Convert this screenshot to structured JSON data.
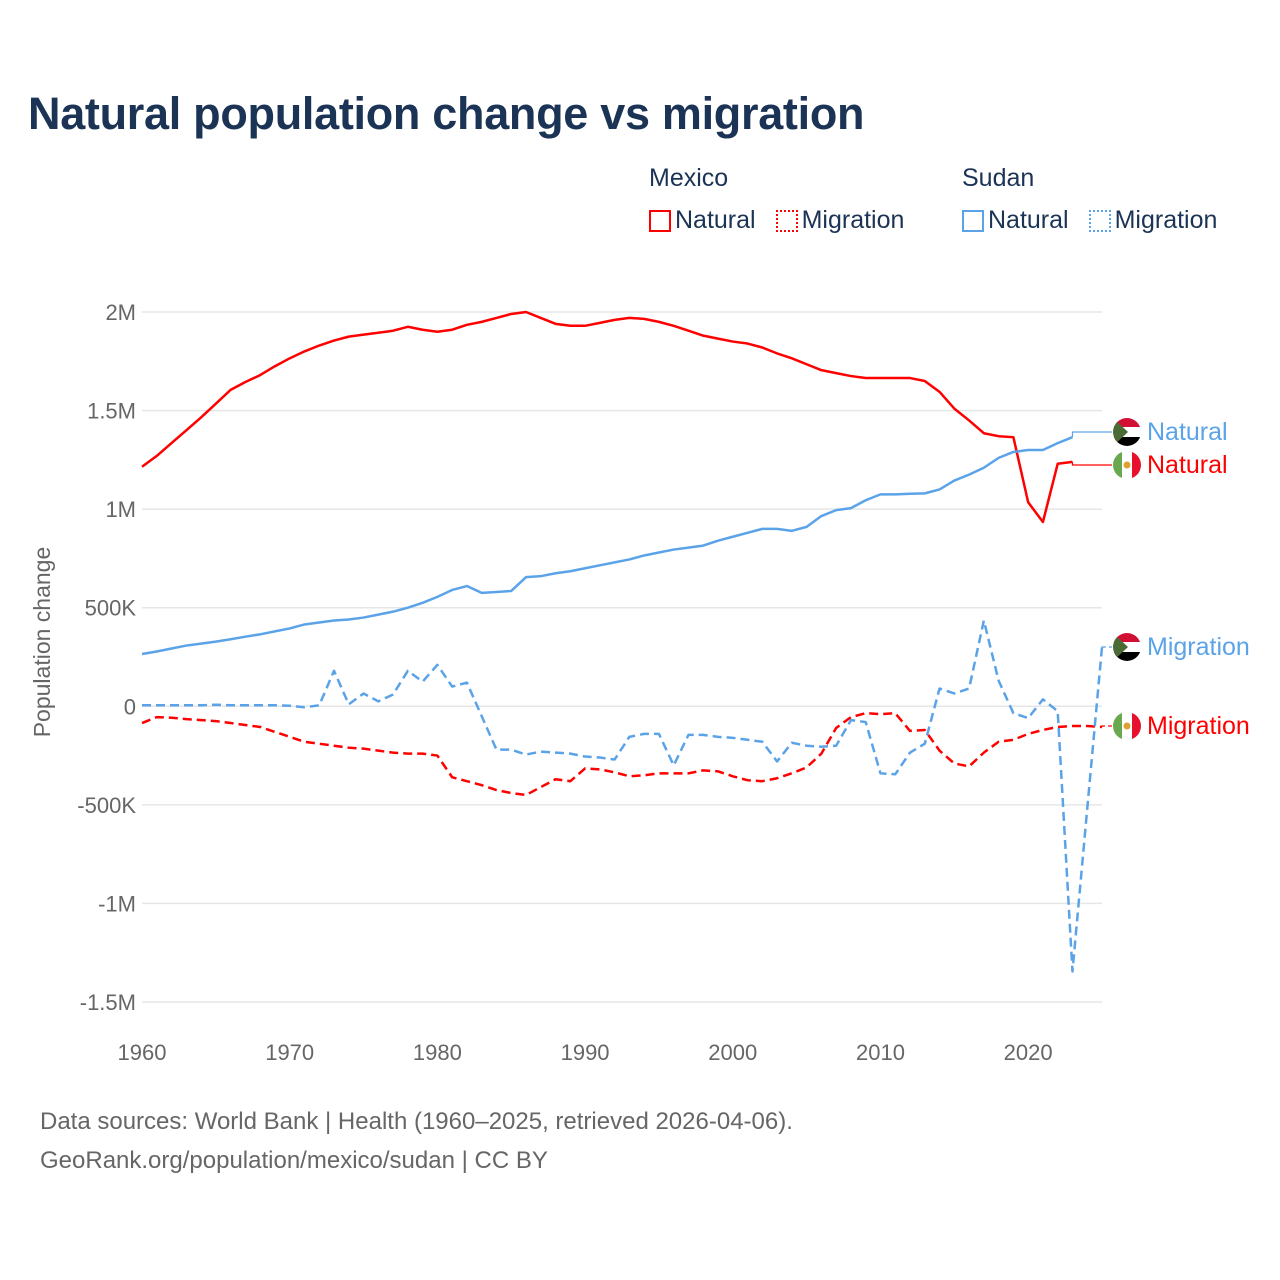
{
  "title": "Natural population change vs migration",
  "legend": {
    "groups": [
      {
        "name": "Mexico",
        "items": [
          "Natural",
          "Migration"
        ],
        "color": "#ff0000"
      },
      {
        "name": "Sudan",
        "items": [
          "Natural",
          "Migration"
        ],
        "color": "#5ba3e8"
      }
    ]
  },
  "footer": {
    "line1": "Data sources: World Bank | Health (1960–2025, retrieved 2026-04-06).",
    "line2": "GeoRank.org/population/mexico/sudan | CC BY"
  },
  "chart_data": {
    "type": "line",
    "title": "Natural population change vs migration",
    "xlabel": "",
    "ylabel": "Population change",
    "xlim": [
      1960,
      2025
    ],
    "ylim": [
      -1500000,
      2000000
    ],
    "x_ticks": [
      1960,
      1970,
      1980,
      1990,
      2000,
      2010,
      2020
    ],
    "y_ticks": [
      {
        "value": 2000000,
        "label": "2M"
      },
      {
        "value": 1500000,
        "label": "1.5M"
      },
      {
        "value": 1000000,
        "label": "1M"
      },
      {
        "value": 500000,
        "label": "500K"
      },
      {
        "value": 0,
        "label": "0"
      },
      {
        "value": -500000,
        "label": "-500K"
      },
      {
        "value": -1000000,
        "label": "-1M"
      },
      {
        "value": -1500000,
        "label": "-1.5M"
      }
    ],
    "grid": true,
    "legend_position": "top-right",
    "series": [
      {
        "name": "Mexico Natural",
        "country": "Mexico",
        "end_label": "Natural",
        "color": "#ff0000",
        "dash": false,
        "start_year": 1960,
        "values_millions": [
          1.215,
          1.27,
          1.335,
          1.4,
          1.465,
          1.535,
          1.605,
          1.645,
          1.68,
          1.725,
          1.765,
          1.8,
          1.83,
          1.855,
          1.875,
          1.885,
          1.895,
          1.905,
          1.925,
          1.91,
          1.9,
          1.91,
          1.935,
          1.95,
          1.97,
          1.99,
          2.0,
          1.97,
          1.94,
          1.93,
          1.93,
          1.945,
          1.96,
          1.97,
          1.965,
          1.95,
          1.93,
          1.905,
          1.88,
          1.865,
          1.85,
          1.84,
          1.82,
          1.79,
          1.765,
          1.735,
          1.705,
          1.69,
          1.675,
          1.665,
          1.665,
          1.665,
          1.665,
          1.65,
          1.595,
          1.51,
          1.45,
          1.385,
          1.37,
          1.365,
          1.035,
          0.935,
          1.23,
          1.24
        ]
      },
      {
        "name": "Mexico Migration",
        "country": "Mexico",
        "end_label": "Migration",
        "color": "#ff0000",
        "dash": true,
        "start_year": 1960,
        "values_millions": [
          -0.085,
          -0.055,
          -0.058,
          -0.065,
          -0.07,
          -0.075,
          -0.085,
          -0.095,
          -0.105,
          -0.13,
          -0.155,
          -0.18,
          -0.19,
          -0.2,
          -0.21,
          -0.215,
          -0.225,
          -0.235,
          -0.24,
          -0.24,
          -0.25,
          -0.36,
          -0.38,
          -0.4,
          -0.425,
          -0.44,
          -0.45,
          -0.41,
          -0.37,
          -0.38,
          -0.315,
          -0.32,
          -0.335,
          -0.355,
          -0.35,
          -0.34,
          -0.34,
          -0.34,
          -0.325,
          -0.33,
          -0.355,
          -0.375,
          -0.38,
          -0.365,
          -0.34,
          -0.31,
          -0.24,
          -0.11,
          -0.055,
          -0.035,
          -0.04,
          -0.035,
          -0.125,
          -0.12,
          -0.225,
          -0.29,
          -0.305,
          -0.235,
          -0.18,
          -0.17,
          -0.14,
          -0.12,
          -0.105,
          -0.1,
          -0.1,
          -0.105
        ]
      },
      {
        "name": "Sudan Natural",
        "country": "Sudan",
        "end_label": "Natural",
        "color": "#5ba3e8",
        "dash": false,
        "start_year": 1960,
        "values_millions": [
          0.265,
          0.278,
          0.293,
          0.308,
          0.318,
          0.328,
          0.34,
          0.353,
          0.365,
          0.38,
          0.395,
          0.415,
          0.425,
          0.435,
          0.44,
          0.45,
          0.465,
          0.48,
          0.5,
          0.525,
          0.555,
          0.59,
          0.61,
          0.575,
          0.58,
          0.585,
          0.655,
          0.66,
          0.675,
          0.685,
          0.7,
          0.715,
          0.73,
          0.745,
          0.765,
          0.78,
          0.795,
          0.805,
          0.815,
          0.84,
          0.86,
          0.88,
          0.9,
          0.9,
          0.89,
          0.91,
          0.965,
          0.995,
          1.005,
          1.045,
          1.075,
          1.075,
          1.078,
          1.08,
          1.1,
          1.145,
          1.175,
          1.21,
          1.26,
          1.29,
          1.3,
          1.3,
          1.335,
          1.365
        ]
      },
      {
        "name": "Sudan Migration",
        "country": "Sudan",
        "end_label": "Migration",
        "color": "#5ba3e8",
        "dash": true,
        "start_year": 1960,
        "values_millions": [
          0.005,
          0.005,
          0.005,
          0.005,
          0.005,
          0.008,
          0.005,
          0.005,
          0.005,
          0.005,
          0.003,
          -0.005,
          0.005,
          0.18,
          0.01,
          0.065,
          0.025,
          0.06,
          0.18,
          0.125,
          0.21,
          0.1,
          0.12,
          -0.05,
          -0.22,
          -0.22,
          -0.245,
          -0.23,
          -0.235,
          -0.24,
          -0.255,
          -0.26,
          -0.27,
          -0.155,
          -0.14,
          -0.14,
          -0.3,
          -0.145,
          -0.145,
          -0.155,
          -0.16,
          -0.17,
          -0.18,
          -0.28,
          -0.185,
          -0.2,
          -0.205,
          -0.2,
          -0.07,
          -0.08,
          -0.34,
          -0.345,
          -0.235,
          -0.19,
          0.09,
          0.065,
          0.09,
          0.435,
          0.13,
          -0.035,
          -0.06,
          0.035,
          -0.025,
          -1.345,
          -0.52,
          0.3
        ]
      }
    ]
  }
}
